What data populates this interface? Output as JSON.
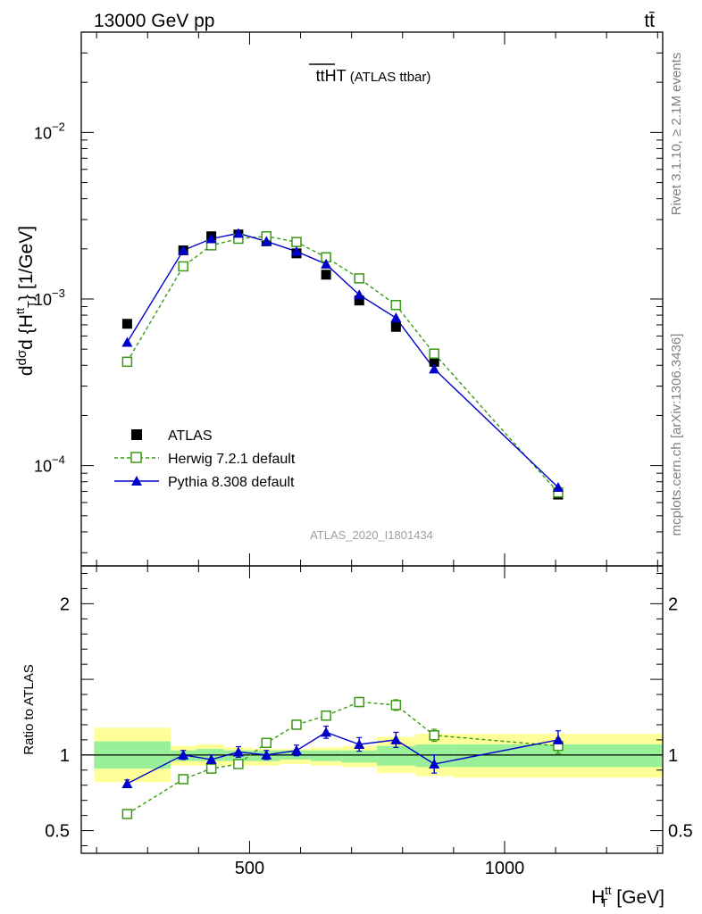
{
  "header": {
    "energy_label": "13000 GeV pp",
    "process_label": "tt̄"
  },
  "side_labels": {
    "rivet": "Rivet 3.1.10, ≥ 2.1M events",
    "mcplots": "mcplots.cern.ch [arXiv:1306.3436]"
  },
  "watermark": "ATLAS_2020_I1801434",
  "colors": {
    "atlas": "#000000",
    "herwig": "#3a9a12",
    "pythia": "#0000cc",
    "band_inner": "#99f099",
    "band_outer": "#ffff99"
  },
  "chart_data": [
    {
      "type": "scatter",
      "title": "ttHT (ATLAS ttbar)",
      "title_main": "tt",
      "title_over": "HT",
      "title_sub": " (ATLAS ttbar)",
      "ylabel": "dσ/d{H_T^tt} [1/GeV]",
      "ylabel_num": "d",
      "ylabel_sigma": "σ",
      "ylabel_frac": "dσ",
      "ylabel_den": "d {H",
      "ylabel_sup": "tt",
      "ylabel_sub": "T",
      "ylabel_close": "} [1/GeV]",
      "yscale": "log",
      "ylim": [
        2.5e-05,
        0.04
      ],
      "xlim": [
        170,
        1310
      ],
      "ytick_labels": [
        {
          "value": 0.0001,
          "base": "10",
          "exp": "−4"
        },
        {
          "value": 0.001,
          "base": "10",
          "exp": "−3"
        },
        {
          "value": 0.01,
          "base": "10",
          "exp": "−2"
        }
      ],
      "legend_position": "lower-left",
      "series": [
        {
          "name": "ATLAS",
          "marker": "filled-square",
          "x": [
            260,
            370,
            425,
            478,
            533,
            592,
            650,
            715,
            787,
            862,
            1105
          ],
          "y": [
            0.00071,
            0.00196,
            0.00238,
            0.00244,
            0.00222,
            0.00188,
            0.0014,
            0.00098,
            0.00068,
            0.00042,
            6.7e-05
          ]
        },
        {
          "name": "Herwig 7.2.1 default",
          "marker": "open-square",
          "line": "dashed",
          "x": [
            260,
            370,
            425,
            478,
            533,
            592,
            650,
            715,
            787,
            862,
            1105
          ],
          "y": [
            0.00042,
            0.00157,
            0.0021,
            0.0023,
            0.00238,
            0.0022,
            0.00178,
            0.00133,
            0.00092,
            0.00047,
            6.9e-05
          ]
        },
        {
          "name": "Pythia 8.308 default",
          "marker": "filled-triangle",
          "line": "solid",
          "x": [
            260,
            370,
            425,
            478,
            533,
            592,
            650,
            715,
            787,
            862,
            1105
          ],
          "y": [
            0.00055,
            0.00196,
            0.0023,
            0.00248,
            0.00222,
            0.00193,
            0.00162,
            0.00106,
            0.00077,
            0.00038,
            7.4e-05
          ]
        }
      ]
    },
    {
      "type": "scatter",
      "ylabel": "Ratio to ATLAS",
      "xlabel": "H_T^tt [GeV]",
      "xlabel_main": "H",
      "xlabel_sup": "tt",
      "xlabel_sub": "T",
      "xlabel_unit": " [GeV]",
      "ylim": [
        0.35,
        2.25
      ],
      "xlim": [
        170,
        1310
      ],
      "xtick_labels": [
        {
          "value": 500,
          "label": "500"
        },
        {
          "value": 1000,
          "label": "1000"
        }
      ],
      "ytick_labels": [
        {
          "value": 0.5,
          "label": "0.5"
        },
        {
          "value": 1,
          "label": "1"
        },
        {
          "value": 2,
          "label": "2"
        }
      ],
      "reference_line": 1,
      "bands": [
        {
          "x0": 195,
          "x1": 345,
          "inner": [
            0.91,
            1.09
          ],
          "outer": [
            0.82,
            1.18
          ]
        },
        {
          "x0": 345,
          "x1": 395,
          "inner": [
            0.96,
            1.03
          ],
          "outer": [
            0.93,
            1.06
          ]
        },
        {
          "x0": 395,
          "x1": 450,
          "inner": [
            0.96,
            1.04
          ],
          "outer": [
            0.93,
            1.07
          ]
        },
        {
          "x0": 450,
          "x1": 505,
          "inner": [
            0.96,
            1.03
          ],
          "outer": [
            0.93,
            1.05
          ]
        },
        {
          "x0": 505,
          "x1": 560,
          "inner": [
            0.96,
            1.03
          ],
          "outer": [
            0.93,
            1.04
          ]
        },
        {
          "x0": 560,
          "x1": 620,
          "inner": [
            0.97,
            1.03
          ],
          "outer": [
            0.94,
            1.04
          ]
        },
        {
          "x0": 620,
          "x1": 680,
          "inner": [
            0.96,
            1.03
          ],
          "outer": [
            0.93,
            1.05
          ]
        },
        {
          "x0": 680,
          "x1": 750,
          "inner": [
            0.95,
            1.03
          ],
          "outer": [
            0.92,
            1.06
          ]
        },
        {
          "x0": 750,
          "x1": 825,
          "inner": [
            0.93,
            1.06
          ],
          "outer": [
            0.88,
            1.12
          ]
        },
        {
          "x0": 825,
          "x1": 900,
          "inner": [
            0.92,
            1.07
          ],
          "outer": [
            0.86,
            1.14
          ]
        },
        {
          "x0": 900,
          "x1": 1310,
          "inner": [
            0.92,
            1.07
          ],
          "outer": [
            0.85,
            1.14
          ]
        }
      ],
      "series": [
        {
          "name": "Herwig 7.2.1 default",
          "marker": "open-square",
          "line": "dashed",
          "x": [
            260,
            370,
            425,
            478,
            533,
            592,
            650,
            715,
            787,
            862,
            1105
          ],
          "y": [
            0.61,
            0.84,
            0.91,
            0.94,
            1.08,
            1.2,
            1.26,
            1.35,
            1.33,
            1.13,
            1.06
          ],
          "err": [
            0.015,
            0.02,
            0.02,
            0.02,
            0.02,
            0.02,
            0.025,
            0.03,
            0.035,
            0.04,
            0.05
          ]
        },
        {
          "name": "Pythia 8.308 default",
          "marker": "filled-triangle",
          "line": "solid",
          "x": [
            260,
            370,
            425,
            478,
            533,
            592,
            650,
            715,
            787,
            862,
            1105
          ],
          "y": [
            0.81,
            1.0,
            0.97,
            1.02,
            1.0,
            1.03,
            1.15,
            1.07,
            1.1,
            0.94,
            1.1
          ],
          "err": [
            0.025,
            0.03,
            0.03,
            0.035,
            0.03,
            0.035,
            0.04,
            0.045,
            0.05,
            0.06,
            0.06
          ]
        }
      ]
    }
  ]
}
